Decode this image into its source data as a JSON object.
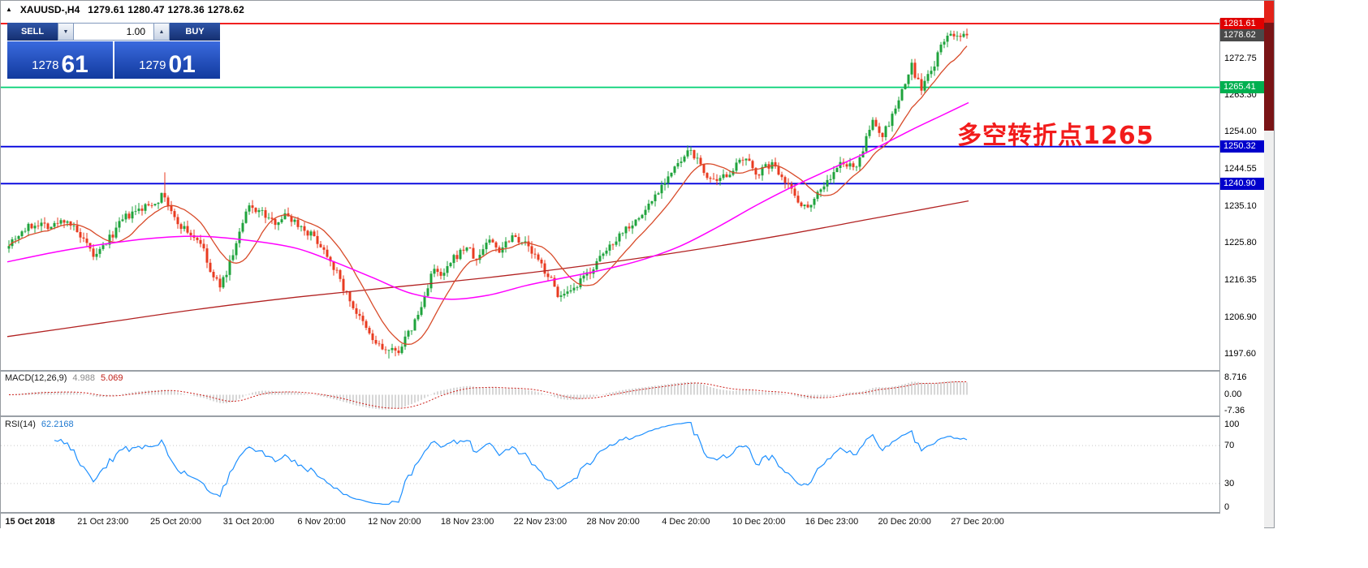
{
  "titlebar": {
    "icon": "▲",
    "symbol_period": "XAUUSD-,H4",
    "ohlc": "1279.61 1280.47 1278.36 1278.62"
  },
  "trade_panel": {
    "sell_label": "SELL",
    "buy_label": "BUY",
    "volume": "1.00",
    "down_glyph": "▼",
    "up_glyph": "▲",
    "sell_price_main": "1278",
    "sell_price_pips": "61",
    "buy_price_main": "1279",
    "buy_price_pips": "01"
  },
  "annotation": {
    "text": "多空转折点1265",
    "color": "#f21b1b"
  },
  "levels": [
    {
      "name": "resistance",
      "price": 1281.61,
      "label": "1281.61",
      "line_color": "#ee0000",
      "tag_bg": "#e00000"
    },
    {
      "name": "bid",
      "price": 1278.62,
      "label": "1278.62",
      "line_color": null,
      "tag_bg": "#4a4a4a"
    },
    {
      "name": "pivot-green",
      "price": 1265.41,
      "label": "1265.41",
      "line_color": "#00d073",
      "tag_bg": "#00b050"
    },
    {
      "name": "support-1",
      "price": 1250.32,
      "label": "1250.32",
      "line_color": "#0000dd",
      "tag_bg": "#0000cc"
    },
    {
      "name": "support-2",
      "price": 1240.9,
      "label": "1240.90",
      "line_color": "#0000dd",
      "tag_bg": "#0000cc"
    }
  ],
  "price_scale": {
    "ticks": [
      "1272.75",
      "1263.30",
      "1254.00",
      "1244.55",
      "1235.10",
      "1225.80",
      "1216.35",
      "1206.90",
      "1197.60"
    ]
  },
  "time_scale": {
    "ticks": [
      "15 Oct 2018",
      "21 Oct 23:00",
      "25 Oct 20:00",
      "31 Oct 20:00",
      "6 Nov 20:00",
      "12 Nov 20:00",
      "18 Nov 23:00",
      "22 Nov 23:00",
      "28 Nov 20:00",
      "4 Dec 20:00",
      "10 Dec 20:00",
      "16 Dec 23:00",
      "20 Dec 20:00",
      "27 Dec 20:00"
    ]
  },
  "macd_panel": {
    "name": "MACD(12,26,9)",
    "value_main": "4.988",
    "value_signal": "5.069",
    "axis": [
      "8.716",
      "0.00",
      "-7.36"
    ]
  },
  "rsi_panel": {
    "name": "RSI(14)",
    "value": "62.2168",
    "axis": [
      "100",
      "70",
      "30",
      "0"
    ]
  },
  "colors": {
    "candle_up": "#1fa33c",
    "candle_down": "#e83b20",
    "macd_hist": "#b6b6b6",
    "macd_signal": "#cc1f1a",
    "rsi_line": "#1e90ff",
    "rsi_level": "#c8c8c8"
  },
  "chart_data": {
    "type": "candlestick",
    "symbol": "XAUUSD-",
    "timeframe": "H4",
    "ohlc_current": {
      "open": 1279.61,
      "high": 1280.47,
      "low": 1278.36,
      "close": 1278.62
    },
    "price_range": [
      1193.5,
      1282.6
    ],
    "num_candles": 296,
    "close_path": [
      [
        0,
        1226
      ],
      [
        0.015,
        1229
      ],
      [
        0.03,
        1231
      ],
      [
        0.045,
        1230
      ],
      [
        0.06,
        1232
      ],
      [
        0.075,
        1227
      ],
      [
        0.09,
        1222
      ],
      [
        0.105,
        1227
      ],
      [
        0.12,
        1232
      ],
      [
        0.135,
        1234
      ],
      [
        0.15,
        1236
      ],
      [
        0.162,
        1238
      ],
      [
        0.172,
        1232
      ],
      [
        0.185,
        1229
      ],
      [
        0.2,
        1226
      ],
      [
        0.212,
        1217
      ],
      [
        0.222,
        1215
      ],
      [
        0.235,
        1224
      ],
      [
        0.25,
        1235
      ],
      [
        0.262,
        1234
      ],
      [
        0.275,
        1231
      ],
      [
        0.29,
        1233
      ],
      [
        0.305,
        1230
      ],
      [
        0.32,
        1227
      ],
      [
        0.335,
        1222
      ],
      [
        0.35,
        1214
      ],
      [
        0.365,
        1207
      ],
      [
        0.38,
        1201
      ],
      [
        0.392,
        1198.5
      ],
      [
        0.405,
        1198
      ],
      [
        0.418,
        1203
      ],
      [
        0.43,
        1209
      ],
      [
        0.442,
        1219
      ],
      [
        0.452,
        1217
      ],
      [
        0.465,
        1222
      ],
      [
        0.478,
        1225
      ],
      [
        0.488,
        1221
      ],
      [
        0.5,
        1227
      ],
      [
        0.512,
        1224
      ],
      [
        0.525,
        1228
      ],
      [
        0.538,
        1226
      ],
      [
        0.55,
        1222
      ],
      [
        0.562,
        1218
      ],
      [
        0.575,
        1212
      ],
      [
        0.588,
        1213
      ],
      [
        0.6,
        1217
      ],
      [
        0.615,
        1221
      ],
      [
        0.63,
        1226
      ],
      [
        0.645,
        1230
      ],
      [
        0.658,
        1232
      ],
      [
        0.672,
        1237
      ],
      [
        0.685,
        1242
      ],
      [
        0.7,
        1246
      ],
      [
        0.712,
        1249.5
      ],
      [
        0.725,
        1244
      ],
      [
        0.738,
        1240.5
      ],
      [
        0.752,
        1244
      ],
      [
        0.768,
        1247
      ],
      [
        0.782,
        1243.5
      ],
      [
        0.795,
        1246
      ],
      [
        0.808,
        1243
      ],
      [
        0.82,
        1238
      ],
      [
        0.832,
        1234.5
      ],
      [
        0.845,
        1239
      ],
      [
        0.858,
        1242.5
      ],
      [
        0.87,
        1246.5
      ],
      [
        0.882,
        1244.5
      ],
      [
        0.892,
        1250
      ],
      [
        0.902,
        1257
      ],
      [
        0.912,
        1253
      ],
      [
        0.922,
        1258
      ],
      [
        0.932,
        1264
      ],
      [
        0.942,
        1271
      ],
      [
        0.952,
        1265
      ],
      [
        0.962,
        1269
      ],
      [
        0.972,
        1275
      ],
      [
        0.982,
        1280
      ],
      [
        0.99,
        1277.5
      ],
      [
        1,
        1278.6
      ]
    ],
    "ma_fast": {
      "name": "fast-ma",
      "color": "#d84b2a",
      "period": 13
    },
    "ma_mid": {
      "name": "mid-ma",
      "color": "#ff00ff",
      "path": [
        [
          0,
          1221
        ],
        [
          0.05,
          1223.5
        ],
        [
          0.1,
          1225.5
        ],
        [
          0.15,
          1227
        ],
        [
          0.2,
          1227.5
        ],
        [
          0.25,
          1226.5
        ],
        [
          0.3,
          1224.5
        ],
        [
          0.34,
          1221
        ],
        [
          0.38,
          1217
        ],
        [
          0.42,
          1213
        ],
        [
          0.46,
          1211.5
        ],
        [
          0.5,
          1212.5
        ],
        [
          0.54,
          1215
        ],
        [
          0.58,
          1217
        ],
        [
          0.62,
          1219
        ],
        [
          0.66,
          1221.5
        ],
        [
          0.7,
          1225
        ],
        [
          0.74,
          1230
        ],
        [
          0.78,
          1235.5
        ],
        [
          0.82,
          1240.5
        ],
        [
          0.86,
          1245
        ],
        [
          0.9,
          1249.5
        ],
        [
          0.94,
          1254.5
        ],
        [
          0.97,
          1258
        ],
        [
          1,
          1261.5
        ]
      ]
    },
    "ma_slow": {
      "name": "slow-ma",
      "color": "#b22222",
      "path": [
        [
          0,
          1202
        ],
        [
          0.1,
          1205.5
        ],
        [
          0.2,
          1209
        ],
        [
          0.3,
          1212
        ],
        [
          0.4,
          1214.5
        ],
        [
          0.5,
          1217
        ],
        [
          0.6,
          1220
        ],
        [
          0.7,
          1223.5
        ],
        [
          0.8,
          1227.5
        ],
        [
          0.9,
          1232
        ],
        [
          1,
          1236.5
        ]
      ]
    },
    "indicators": {
      "macd": {
        "fast": 12,
        "slow": 26,
        "signal": 9
      },
      "rsi": {
        "period": 14
      }
    }
  }
}
